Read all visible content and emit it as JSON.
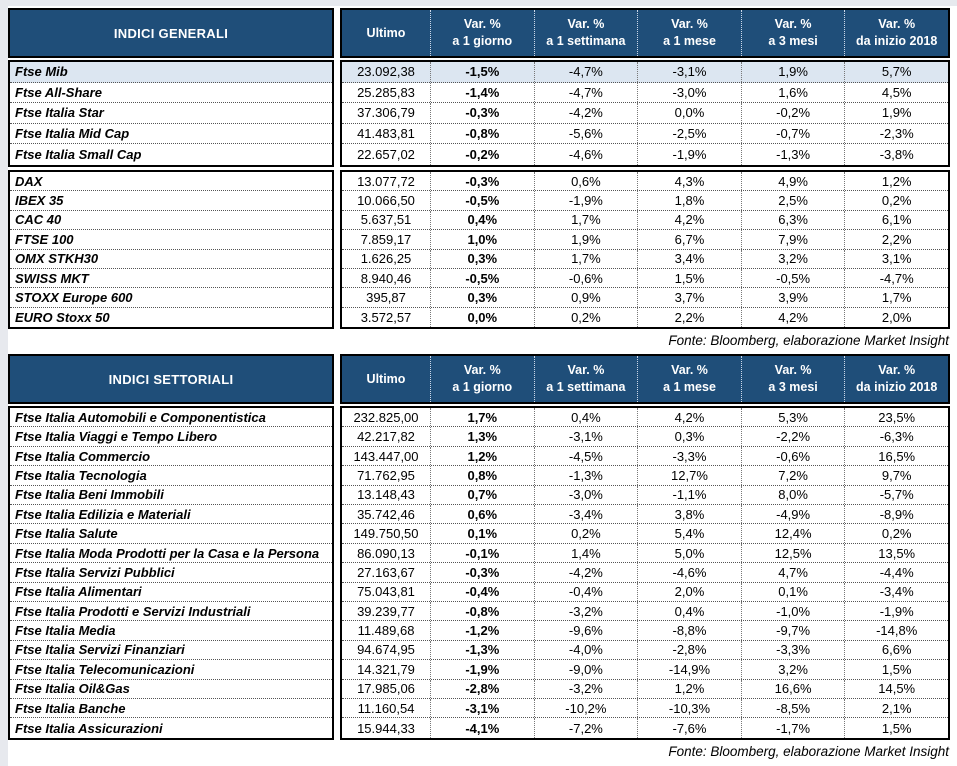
{
  "colors": {
    "header_bg": "#1F4E79",
    "highlight_row": "#DCE6F1",
    "block_border": "#000000",
    "frame": "#E7E9EE"
  },
  "columns": {
    "ultimo": "Ultimo",
    "variations": [
      {
        "line1": "Var. %",
        "line2": "a 1 giorno"
      },
      {
        "line1": "Var. %",
        "line2": "a 1 settimana"
      },
      {
        "line1": "Var. %",
        "line2": "a 1 mese"
      },
      {
        "line1": "Var. %",
        "line2": "a 3 mesi"
      },
      {
        "line1": "Var. %",
        "line2": "da inizio 2018"
      }
    ]
  },
  "tables": [
    {
      "title": "INDICI GENERALI",
      "source": "Fonte: Bloomberg, elaborazione Market Insight",
      "groups": [
        {
          "rows": [
            {
              "name": "Ftse Mib",
              "ultimo": "23.092,38",
              "vars": [
                "-1,5%",
                "-4,7%",
                "-3,1%",
                "1,9%",
                "5,7%"
              ],
              "highlight": true
            },
            {
              "name": "Ftse All-Share",
              "ultimo": "25.285,83",
              "vars": [
                "-1,4%",
                "-4,7%",
                "-3,0%",
                "1,6%",
                "4,5%"
              ],
              "highlight": false
            },
            {
              "name": "Ftse Italia Star",
              "ultimo": "37.306,79",
              "vars": [
                "-0,3%",
                "-4,2%",
                "0,0%",
                "-0,2%",
                "1,9%"
              ],
              "highlight": false
            },
            {
              "name": "Ftse Italia Mid Cap",
              "ultimo": "41.483,81",
              "vars": [
                "-0,8%",
                "-5,6%",
                "-2,5%",
                "-0,7%",
                "-2,3%"
              ],
              "highlight": false
            },
            {
              "name": "Ftse Italia Small Cap",
              "ultimo": "22.657,02",
              "vars": [
                "-0,2%",
                "-4,6%",
                "-1,9%",
                "-1,3%",
                "-3,8%"
              ],
              "highlight": false
            }
          ]
        },
        {
          "rows": [
            {
              "name": "DAX",
              "ultimo": "13.077,72",
              "vars": [
                "-0,3%",
                "0,6%",
                "4,3%",
                "4,9%",
                "1,2%"
              ],
              "highlight": false
            },
            {
              "name": "IBEX 35",
              "ultimo": "10.066,50",
              "vars": [
                "-0,5%",
                "-1,9%",
                "1,8%",
                "2,5%",
                "0,2%"
              ],
              "highlight": false
            },
            {
              "name": "CAC 40",
              "ultimo": "5.637,51",
              "vars": [
                "0,4%",
                "1,7%",
                "4,2%",
                "6,3%",
                "6,1%"
              ],
              "highlight": false
            },
            {
              "name": "FTSE 100",
              "ultimo": "7.859,17",
              "vars": [
                "1,0%",
                "1,9%",
                "6,7%",
                "7,9%",
                "2,2%"
              ],
              "highlight": false
            },
            {
              "name": "OMX STKH30",
              "ultimo": "1.626,25",
              "vars": [
                "0,3%",
                "1,7%",
                "3,4%",
                "3,2%",
                "3,1%"
              ],
              "highlight": false
            },
            {
              "name": "SWISS MKT",
              "ultimo": "8.940,46",
              "vars": [
                "-0,5%",
                "-0,6%",
                "1,5%",
                "-0,5%",
                "-4,7%"
              ],
              "highlight": false
            },
            {
              "name": "STOXX Europe 600",
              "ultimo": "395,87",
              "vars": [
                "0,3%",
                "0,9%",
                "3,7%",
                "3,9%",
                "1,7%"
              ],
              "highlight": false
            },
            {
              "name": "EURO Stoxx 50",
              "ultimo": "3.572,57",
              "vars": [
                "0,0%",
                "0,2%",
                "2,2%",
                "4,2%",
                "2,0%"
              ],
              "highlight": false
            }
          ]
        }
      ]
    },
    {
      "title": "INDICI SETTORIALI",
      "source": "Fonte: Bloomberg, elaborazione Market Insight",
      "groups": [
        {
          "rows": [
            {
              "name": "Ftse Italia Automobili e Componentistica",
              "ultimo": "232.825,00",
              "vars": [
                "1,7%",
                "0,4%",
                "4,2%",
                "5,3%",
                "23,5%"
              ],
              "highlight": false
            },
            {
              "name": "Ftse Italia Viaggi e Tempo Libero",
              "ultimo": "42.217,82",
              "vars": [
                "1,3%",
                "-3,1%",
                "0,3%",
                "-2,2%",
                "-6,3%"
              ],
              "highlight": false
            },
            {
              "name": "Ftse Italia Commercio",
              "ultimo": "143.447,00",
              "vars": [
                "1,2%",
                "-4,5%",
                "-3,3%",
                "-0,6%",
                "16,5%"
              ],
              "highlight": false
            },
            {
              "name": "Ftse Italia Tecnologia",
              "ultimo": "71.762,95",
              "vars": [
                "0,8%",
                "-1,3%",
                "12,7%",
                "7,2%",
                "9,7%"
              ],
              "highlight": false
            },
            {
              "name": "Ftse Italia Beni Immobili",
              "ultimo": "13.148,43",
              "vars": [
                "0,7%",
                "-3,0%",
                "-1,1%",
                "8,0%",
                "-5,7%"
              ],
              "highlight": false
            },
            {
              "name": "Ftse Italia Edilizia e Materiali",
              "ultimo": "35.742,46",
              "vars": [
                "0,6%",
                "-3,4%",
                "3,8%",
                "-4,9%",
                "-8,9%"
              ],
              "highlight": false
            },
            {
              "name": "Ftse Italia Salute",
              "ultimo": "149.750,50",
              "vars": [
                "0,1%",
                "0,2%",
                "5,4%",
                "12,4%",
                "0,2%"
              ],
              "highlight": false
            },
            {
              "name": "Ftse Italia Moda Prodotti per la Casa e la Persona",
              "ultimo": "86.090,13",
              "vars": [
                "-0,1%",
                "1,4%",
                "5,0%",
                "12,5%",
                "13,5%"
              ],
              "highlight": false
            },
            {
              "name": "Ftse Italia Servizi Pubblici",
              "ultimo": "27.163,67",
              "vars": [
                "-0,3%",
                "-4,2%",
                "-4,6%",
                "4,7%",
                "-4,4%"
              ],
              "highlight": false
            },
            {
              "name": "Ftse Italia Alimentari",
              "ultimo": "75.043,81",
              "vars": [
                "-0,4%",
                "-0,4%",
                "2,0%",
                "0,1%",
                "-3,4%"
              ],
              "highlight": false
            },
            {
              "name": "Ftse Italia Prodotti e Servizi Industriali",
              "ultimo": "39.239,77",
              "vars": [
                "-0,8%",
                "-3,2%",
                "0,4%",
                "-1,0%",
                "-1,9%"
              ],
              "highlight": false
            },
            {
              "name": "Ftse Italia Media",
              "ultimo": "11.489,68",
              "vars": [
                "-1,2%",
                "-9,6%",
                "-8,8%",
                "-9,7%",
                "-14,8%"
              ],
              "highlight": false
            },
            {
              "name": "Ftse Italia Servizi Finanziari",
              "ultimo": "94.674,95",
              "vars": [
                "-1,3%",
                "-4,0%",
                "-2,8%",
                "-3,3%",
                "6,6%"
              ],
              "highlight": false
            },
            {
              "name": "Ftse Italia Telecomunicazioni",
              "ultimo": "14.321,79",
              "vars": [
                "-1,9%",
                "-9,0%",
                "-14,9%",
                "3,2%",
                "1,5%"
              ],
              "highlight": false
            },
            {
              "name": "Ftse Italia Oil&Gas",
              "ultimo": "17.985,06",
              "vars": [
                "-2,8%",
                "-3,2%",
                "1,2%",
                "16,6%",
                "14,5%"
              ],
              "highlight": false
            },
            {
              "name": "Ftse Italia Banche",
              "ultimo": "11.160,54",
              "vars": [
                "-3,1%",
                "-10,2%",
                "-10,3%",
                "-8,5%",
                "2,1%"
              ],
              "highlight": false
            },
            {
              "name": "Ftse Italia Assicurazioni",
              "ultimo": "15.944,33",
              "vars": [
                "-4,1%",
                "-7,2%",
                "-7,6%",
                "-1,7%",
                "1,5%"
              ],
              "highlight": false
            }
          ]
        }
      ]
    }
  ]
}
